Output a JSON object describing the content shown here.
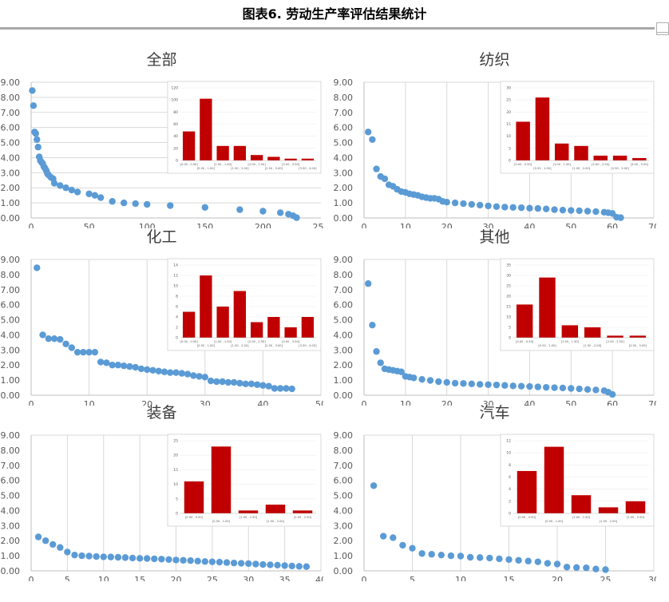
{
  "figure_title": "图表6.      劳动生产率评估结果统计",
  "colors": {
    "scatter": "#5b9bd5",
    "bar": "#c00000",
    "grid": "#d9d9d9",
    "axis_text": "#595959"
  },
  "chart_data": [
    {
      "title": "全部",
      "type": "scatter",
      "xlim": [
        0,
        250
      ],
      "xticks": [
        0,
        50,
        100,
        150,
        200,
        250
      ],
      "ylim": [
        0,
        9
      ],
      "yticks": [
        "0.00",
        "1.00",
        "2.00",
        "3.00",
        "4.00",
        "5.00",
        "6.00",
        "7.00",
        "8.00",
        "9.00"
      ],
      "grid": "horizontal",
      "points": [
        [
          1,
          8.45
        ],
        [
          2,
          7.45
        ],
        [
          3,
          5.7
        ],
        [
          4,
          5.6
        ],
        [
          5,
          5.2
        ],
        [
          6,
          4.7
        ],
        [
          7,
          4.05
        ],
        [
          8,
          3.8
        ],
        [
          9,
          3.7
        ],
        [
          10,
          3.6
        ],
        [
          11,
          3.4
        ],
        [
          12,
          3.3
        ],
        [
          13,
          3.15
        ],
        [
          14,
          2.95
        ],
        [
          15,
          2.85
        ],
        [
          17,
          2.7
        ],
        [
          19,
          2.6
        ],
        [
          20,
          2.3
        ],
        [
          25,
          2.15
        ],
        [
          30,
          2.0
        ],
        [
          35,
          1.85
        ],
        [
          40,
          1.72
        ],
        [
          50,
          1.6
        ],
        [
          55,
          1.5
        ],
        [
          60,
          1.35
        ],
        [
          70,
          1.1
        ],
        [
          80,
          1.0
        ],
        [
          90,
          0.95
        ],
        [
          100,
          0.9
        ],
        [
          120,
          0.82
        ],
        [
          150,
          0.7
        ],
        [
          180,
          0.55
        ],
        [
          200,
          0.45
        ],
        [
          215,
          0.35
        ],
        [
          222,
          0.25
        ],
        [
          226,
          0.15
        ],
        [
          229,
          0.02
        ]
      ],
      "inset": {
        "type": "bar",
        "categories": [
          "[0.00 , 0.50]",
          "[0.50 , 1.00]",
          "[1.00 , 1.50]",
          "[1.50 , 2.00]",
          "[2.00 , 2.50]",
          "[2.50 , 3.00]",
          "[3.00 , 3.50]",
          "[3.50 , 4.00]"
        ],
        "values": [
          48,
          102,
          24,
          24,
          9,
          6,
          3,
          3
        ],
        "ylim": [
          0,
          120
        ],
        "yticks": [
          0,
          20,
          40,
          60,
          80,
          100,
          120
        ]
      }
    },
    {
      "title": "纺织",
      "type": "scatter",
      "xlim": [
        0,
        70
      ],
      "xticks": [
        0,
        10,
        20,
        30,
        40,
        50,
        60,
        70
      ],
      "ylim": [
        0,
        9
      ],
      "yticks": [
        "0.00",
        "1.00",
        "2.00",
        "3.00",
        "4.00",
        "5.00",
        "6.00",
        "7.00",
        "8.00",
        "9.00"
      ],
      "grid": "vertical",
      "points": [
        [
          1,
          5.7
        ],
        [
          2,
          5.2
        ],
        [
          3,
          3.25
        ],
        [
          4,
          2.75
        ],
        [
          5,
          2.6
        ],
        [
          6,
          2.2
        ],
        [
          7,
          2.1
        ],
        [
          8,
          1.9
        ],
        [
          9,
          1.75
        ],
        [
          10,
          1.7
        ],
        [
          11,
          1.6
        ],
        [
          12,
          1.55
        ],
        [
          13,
          1.5
        ],
        [
          14,
          1.4
        ],
        [
          15,
          1.35
        ],
        [
          16,
          1.3
        ],
        [
          17,
          1.3
        ],
        [
          18,
          1.25
        ],
        [
          19,
          1.1
        ],
        [
          20,
          1.05
        ],
        [
          22,
          1.0
        ],
        [
          24,
          0.95
        ],
        [
          26,
          0.9
        ],
        [
          28,
          0.85
        ],
        [
          30,
          0.8
        ],
        [
          32,
          0.75
        ],
        [
          34,
          0.72
        ],
        [
          36,
          0.7
        ],
        [
          38,
          0.68
        ],
        [
          40,
          0.65
        ],
        [
          42,
          0.63
        ],
        [
          44,
          0.6
        ],
        [
          46,
          0.55
        ],
        [
          48,
          0.52
        ],
        [
          50,
          0.5
        ],
        [
          52,
          0.48
        ],
        [
          54,
          0.45
        ],
        [
          56,
          0.42
        ],
        [
          58,
          0.38
        ],
        [
          59,
          0.35
        ],
        [
          60,
          0.3
        ],
        [
          61,
          0.05
        ],
        [
          62,
          0.02
        ]
      ],
      "inset": {
        "type": "bar",
        "categories": [
          "[0.00 , 0.50]",
          "[0.50 , 1.00]",
          "[1.00 , 1.50]",
          "[1.50 , 2.00]",
          "[2.00 , 2.50]",
          "[2.50 , 3.00]",
          "[3.00 , 3.50]"
        ],
        "values": [
          16,
          26,
          7,
          6,
          2,
          2,
          1
        ],
        "ylim": [
          0,
          30
        ],
        "yticks": [
          0,
          5,
          10,
          15,
          20,
          25,
          30
        ]
      }
    },
    {
      "title": "化工",
      "type": "scatter",
      "xlim": [
        0,
        50
      ],
      "xticks": [
        0,
        10,
        20,
        30,
        40,
        50
      ],
      "ylim": [
        0,
        9
      ],
      "yticks": [
        "0.00",
        "1.00",
        "2.00",
        "3.00",
        "4.00",
        "5.00",
        "6.00",
        "7.00",
        "8.00",
        "9.00"
      ],
      "grid": "vertical",
      "points": [
        [
          1,
          8.45
        ],
        [
          2,
          4.0
        ],
        [
          3,
          3.75
        ],
        [
          4,
          3.75
        ],
        [
          5,
          3.7
        ],
        [
          6,
          3.4
        ],
        [
          7,
          3.15
        ],
        [
          8,
          2.85
        ],
        [
          9,
          2.85
        ],
        [
          10,
          2.85
        ],
        [
          11,
          2.85
        ],
        [
          12,
          2.2
        ],
        [
          13,
          2.15
        ],
        [
          14,
          2.0
        ],
        [
          15,
          2.0
        ],
        [
          16,
          1.95
        ],
        [
          17,
          1.9
        ],
        [
          18,
          1.85
        ],
        [
          19,
          1.75
        ],
        [
          20,
          1.7
        ],
        [
          21,
          1.65
        ],
        [
          22,
          1.6
        ],
        [
          23,
          1.55
        ],
        [
          24,
          1.5
        ],
        [
          25,
          1.5
        ],
        [
          26,
          1.45
        ],
        [
          27,
          1.4
        ],
        [
          28,
          1.3
        ],
        [
          29,
          1.25
        ],
        [
          30,
          1.2
        ],
        [
          31,
          0.95
        ],
        [
          32,
          0.9
        ],
        [
          33,
          0.9
        ],
        [
          34,
          0.85
        ],
        [
          35,
          0.85
        ],
        [
          36,
          0.8
        ],
        [
          37,
          0.75
        ],
        [
          38,
          0.75
        ],
        [
          39,
          0.7
        ],
        [
          40,
          0.65
        ],
        [
          41,
          0.6
        ],
        [
          42,
          0.45
        ],
        [
          43,
          0.45
        ],
        [
          44,
          0.45
        ],
        [
          45,
          0.42
        ]
      ],
      "inset": {
        "type": "bar",
        "categories": [
          "[0.00 , 0.50]",
          "[0.50 , 1.00]",
          "[1.00 , 1.50]",
          "[1.50 , 2.00]",
          "[2.00 , 2.50]",
          "[2.50 , 3.00]",
          "[3.00 , 3.50]",
          "[3.50 , 4.00]"
        ],
        "values": [
          5,
          12,
          6,
          9,
          3,
          4,
          2,
          4
        ],
        "ylim": [
          0,
          14
        ],
        "yticks": [
          0,
          2,
          4,
          6,
          8,
          10,
          12,
          14
        ]
      }
    },
    {
      "title": "其他",
      "type": "scatter",
      "xlim": [
        0,
        70
      ],
      "xticks": [
        0,
        10,
        20,
        30,
        40,
        50,
        60,
        70
      ],
      "ylim": [
        0,
        9
      ],
      "yticks": [
        "0.00",
        "1.00",
        "2.00",
        "3.00",
        "4.00",
        "5.00",
        "6.00",
        "7.00",
        "8.00",
        "9.00"
      ],
      "grid": "vertical",
      "points": [
        [
          1,
          7.4
        ],
        [
          2,
          4.65
        ],
        [
          3,
          2.9
        ],
        [
          4,
          2.15
        ],
        [
          5,
          1.75
        ],
        [
          6,
          1.7
        ],
        [
          7,
          1.65
        ],
        [
          8,
          1.6
        ],
        [
          9,
          1.55
        ],
        [
          10,
          1.25
        ],
        [
          11,
          1.2
        ],
        [
          12,
          1.15
        ],
        [
          14,
          1.05
        ],
        [
          16,
          0.98
        ],
        [
          18,
          0.9
        ],
        [
          20,
          0.85
        ],
        [
          22,
          0.8
        ],
        [
          24,
          0.78
        ],
        [
          26,
          0.75
        ],
        [
          28,
          0.72
        ],
        [
          30,
          0.7
        ],
        [
          32,
          0.68
        ],
        [
          34,
          0.65
        ],
        [
          36,
          0.62
        ],
        [
          38,
          0.6
        ],
        [
          40,
          0.58
        ],
        [
          42,
          0.55
        ],
        [
          44,
          0.52
        ],
        [
          46,
          0.5
        ],
        [
          48,
          0.48
        ],
        [
          50,
          0.45
        ],
        [
          52,
          0.42
        ],
        [
          54,
          0.38
        ],
        [
          56,
          0.35
        ],
        [
          58,
          0.3
        ],
        [
          59,
          0.2
        ],
        [
          60,
          0.05
        ]
      ],
      "inset": {
        "type": "bar",
        "categories": [
          "[0.00 , 0.50]",
          "[0.50 , 1.00]",
          "[1.00 , 1.50]",
          "[1.50 , 2.00]",
          "[2.00 , 2.50]",
          "[2.50 , 3.00]"
        ],
        "values": [
          16,
          29,
          6,
          5,
          1,
          1
        ],
        "ylim": [
          0,
          35
        ],
        "yticks": [
          0,
          5,
          10,
          15,
          20,
          25,
          30,
          35
        ]
      }
    },
    {
      "title": "装备",
      "type": "scatter",
      "xlim": [
        0,
        40
      ],
      "xticks": [
        0,
        5,
        10,
        15,
        20,
        25,
        30,
        35,
        40
      ],
      "ylim": [
        0,
        9
      ],
      "yticks": [
        "0.00",
        "1.00",
        "2.00",
        "3.00",
        "4.00",
        "5.00",
        "6.00",
        "7.00",
        "8.00",
        "9.00"
      ],
      "grid": "vertical",
      "points": [
        [
          1,
          2.25
        ],
        [
          2,
          2.0
        ],
        [
          3,
          1.75
        ],
        [
          4,
          1.55
        ],
        [
          5,
          1.25
        ],
        [
          6,
          1.05
        ],
        [
          7,
          1.0
        ],
        [
          8,
          0.98
        ],
        [
          9,
          0.95
        ],
        [
          10,
          0.93
        ],
        [
          11,
          0.92
        ],
        [
          12,
          0.9
        ],
        [
          13,
          0.88
        ],
        [
          14,
          0.85
        ],
        [
          15,
          0.83
        ],
        [
          16,
          0.82
        ],
        [
          17,
          0.8
        ],
        [
          18,
          0.78
        ],
        [
          19,
          0.75
        ],
        [
          20,
          0.72
        ],
        [
          21,
          0.7
        ],
        [
          22,
          0.68
        ],
        [
          23,
          0.65
        ],
        [
          24,
          0.62
        ],
        [
          25,
          0.6
        ],
        [
          26,
          0.58
        ],
        [
          27,
          0.55
        ],
        [
          28,
          0.52
        ],
        [
          29,
          0.5
        ],
        [
          30,
          0.48
        ],
        [
          31,
          0.45
        ],
        [
          32,
          0.42
        ],
        [
          33,
          0.4
        ],
        [
          34,
          0.38
        ],
        [
          35,
          0.35
        ],
        [
          36,
          0.32
        ],
        [
          37,
          0.3
        ],
        [
          38,
          0.28
        ]
      ],
      "inset": {
        "type": "bar",
        "categories": [
          "[0.00 , 0.50]",
          "[0.50 , 1.00]",
          "[1.00 , 1.50]",
          "[1.50 , 2.00]",
          "[2.00 , 2.50]"
        ],
        "values": [
          11,
          23,
          1,
          3,
          1
        ],
        "ylim": [
          0,
          25
        ],
        "yticks": [
          0,
          5,
          10,
          15,
          20,
          25
        ]
      }
    },
    {
      "title": "汽车",
      "type": "scatter",
      "xlim": [
        0,
        30
      ],
      "xticks": [
        0,
        5,
        10,
        15,
        20,
        25,
        30
      ],
      "ylim": [
        0,
        9
      ],
      "yticks": [
        "0.00",
        "1.00",
        "2.00",
        "3.00",
        "4.00",
        "5.00",
        "6.00",
        "7.00",
        "8.00",
        "9.00"
      ],
      "grid": "vertical",
      "points": [
        [
          1,
          5.65
        ],
        [
          2,
          2.3
        ],
        [
          3,
          2.2
        ],
        [
          4,
          1.7
        ],
        [
          5,
          1.5
        ],
        [
          6,
          1.15
        ],
        [
          7,
          1.1
        ],
        [
          8,
          1.05
        ],
        [
          9,
          1.0
        ],
        [
          10,
          0.98
        ],
        [
          11,
          0.9
        ],
        [
          12,
          0.88
        ],
        [
          13,
          0.85
        ],
        [
          14,
          0.8
        ],
        [
          15,
          0.75
        ],
        [
          16,
          0.7
        ],
        [
          17,
          0.65
        ],
        [
          18,
          0.6
        ],
        [
          19,
          0.5
        ],
        [
          20,
          0.45
        ],
        [
          21,
          0.25
        ],
        [
          22,
          0.22
        ],
        [
          23,
          0.2
        ],
        [
          24,
          0.12
        ],
        [
          25,
          0.08
        ]
      ],
      "inset": {
        "type": "bar",
        "categories": [
          "[0.00 , 0.50]",
          "[0.50 , 1.00]",
          "[1.00 , 1.50]",
          "[1.50 , 2.00]",
          "[2.00 , 2.50]"
        ],
        "values": [
          7,
          11,
          3,
          1,
          2
        ],
        "ylim": [
          0,
          12
        ],
        "yticks": [
          0,
          2,
          4,
          6,
          8,
          10,
          12
        ]
      }
    }
  ]
}
